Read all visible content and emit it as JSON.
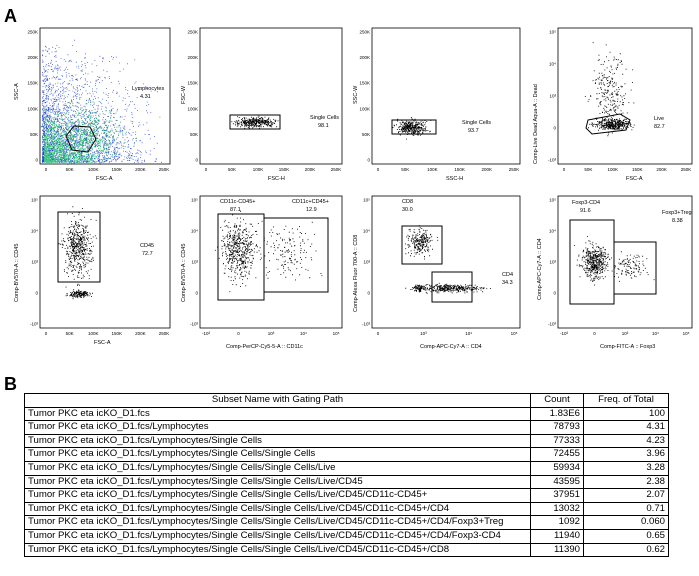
{
  "panels": {
    "a": "A",
    "b": "B"
  },
  "plots": [
    {
      "y_label": "SSC-A",
      "x_label": "FSC-A",
      "gate_name": "Lymphocytes",
      "gate_value": "4.31",
      "y_ticks": [
        "250K",
        "200K",
        "150K",
        "100K",
        "50K",
        "0"
      ],
      "x_ticks": [
        "0",
        "50K",
        "100K",
        "150K",
        "200K",
        "250K"
      ]
    },
    {
      "y_label": "FSC-W",
      "x_label": "FSC-H",
      "gate_name": "Single Cells",
      "gate_value": "98.1",
      "y_ticks": [
        "250K",
        "200K",
        "150K",
        "100K",
        "50K",
        "0"
      ],
      "x_ticks": [
        "0",
        "50K",
        "100K",
        "150K",
        "200K",
        "250K"
      ]
    },
    {
      "y_label": "SSC-W",
      "x_label": "SSC-H",
      "gate_name": "Single Cells",
      "gate_value": "93.7",
      "y_ticks": [
        "250K",
        "200K",
        "150K",
        "100K",
        "50K",
        "0"
      ],
      "x_ticks": [
        "0",
        "50K",
        "100K",
        "150K",
        "200K",
        "250K"
      ]
    },
    {
      "y_label": "Comp-Live Dead Aqua-A :: Dead",
      "x_label": "FSC-A",
      "gate_name": "Live",
      "gate_value": "82.7",
      "y_ticks": [
        "10⁵",
        "10⁴",
        "10³",
        "0",
        "-10³"
      ],
      "x_ticks": [
        "0",
        "50K",
        "100K",
        "150K",
        "200K",
        "250K"
      ]
    },
    {
      "y_label": "Comp-BV570-A :: CD45",
      "x_label": "FSC-A",
      "gate_name": "CD45",
      "gate_value": "72.7",
      "y_ticks": [
        "10⁵",
        "10⁴",
        "10³",
        "0",
        "-10³"
      ],
      "x_ticks": [
        "0",
        "50K",
        "100K",
        "150K",
        "200K",
        "250K"
      ]
    },
    {
      "y_label": "Comp-BV570-A :: CD45",
      "x_label": "Comp-PerCP-Cy5-5-A :: CD11c",
      "gate1_name": "CD11c-CD45+",
      "gate1_value": "87.1",
      "gate2_name": "CD11c+CD45+",
      "gate2_value": "12.9",
      "y_ticks": [
        "10⁵",
        "10⁴",
        "10³",
        "0",
        "-10³"
      ],
      "x_ticks": [
        "-10³",
        "0",
        "10³",
        "10⁴",
        "10⁵"
      ]
    },
    {
      "y_label": "Comp-Alexa Fluor 700-A :: CD8",
      "x_label": "Comp-APC-Cy7-A :: CD4",
      "gate1_name": "CD8",
      "gate1_value": "30.0",
      "gate2_name": "CD4",
      "gate2_value": "34.3",
      "y_ticks": [
        "10⁵",
        "10⁴",
        "10³",
        "0",
        "-10³"
      ],
      "x_ticks": [
        "0",
        "10³",
        "10⁴",
        "10⁵"
      ]
    },
    {
      "y_label": "Comp-APC-Cy7-A :: CD4",
      "x_label": "Comp-FITC-A :: Foxp3",
      "gate1_name": "Foxp3-CD4",
      "gate1_value": "91.6",
      "gate2_name": "Foxp3+Treg",
      "gate2_value": "8.38",
      "y_ticks": [
        "10⁵",
        "10⁴",
        "10³",
        "0",
        "-10³"
      ],
      "x_ticks": [
        "-10³",
        "0",
        "10³",
        "10⁴",
        "10⁵"
      ]
    }
  ],
  "table": {
    "headers": [
      "Subset Name with Gating Path",
      "Count",
      "Freq. of Total"
    ],
    "rows": [
      [
        "Tumor PKC eta icKO_D1.fcs",
        "1.83E6",
        "100"
      ],
      [
        "Tumor PKC eta icKO_D1.fcs/Lymphocytes",
        "78793",
        "4.31"
      ],
      [
        "Tumor PKC eta icKO_D1.fcs/Lymphocytes/Single Cells",
        "77333",
        "4.23"
      ],
      [
        "Tumor PKC eta icKO_D1.fcs/Lymphocytes/Single Cells/Single Cells",
        "72455",
        "3.96"
      ],
      [
        "Tumor PKC eta icKO_D1.fcs/Lymphocytes/Single Cells/Single Cells/Live",
        "59934",
        "3.28"
      ],
      [
        "Tumor PKC eta icKO_D1.fcs/Lymphocytes/Single Cells/Single Cells/Live/CD45",
        "43595",
        "2.38"
      ],
      [
        "Tumor PKC eta icKO_D1.fcs/Lymphocytes/Single Cells/Single Cells/Live/CD45/CD11c-CD45+",
        "37951",
        "2.07"
      ],
      [
        "Tumor PKC eta icKO_D1.fcs/Lymphocytes/Single Cells/Single Cells/Live/CD45/CD11c-CD45+/CD4",
        "13032",
        "0.71"
      ],
      [
        "Tumor PKC eta icKO_D1.fcs/Lymphocytes/Single Cells/Single Cells/Live/CD45/CD11c-CD45+/CD4/Foxp3+Treg",
        "1092",
        "0.060"
      ],
      [
        "Tumor PKC eta icKO_D1.fcs/Lymphocytes/Single Cells/Single Cells/Live/CD45/CD11c-CD45+/CD4/Foxp3-CD4",
        "11940",
        "0.65"
      ],
      [
        "Tumor PKC eta icKO_D1.fcs/Lymphocytes/Single Cells/Single Cells/Live/CD45/CD11c-CD45+/CD8",
        "11390",
        "0.62"
      ]
    ]
  }
}
